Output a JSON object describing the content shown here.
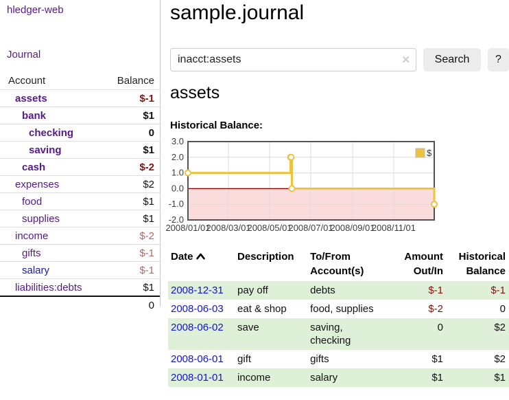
{
  "sidebar": {
    "brand": "hledger-web",
    "nav": [
      {
        "label": "Journal"
      }
    ],
    "accounts_table": {
      "columns": [
        "Account",
        "Balance"
      ],
      "rows": [
        {
          "name": "assets",
          "depth": 1,
          "bold": true,
          "balance": "$-1",
          "neg": "strong"
        },
        {
          "name": "bank",
          "depth": 2,
          "bold": true,
          "balance": "$1"
        },
        {
          "name": "checking",
          "depth": 3,
          "bold": true,
          "balance": "0"
        },
        {
          "name": "saving",
          "depth": 3,
          "bold": true,
          "balance": "$1"
        },
        {
          "name": "cash",
          "depth": 2,
          "bold": true,
          "balance": "$-2",
          "neg": "strong"
        },
        {
          "name": "expenses",
          "depth": 1,
          "bold": false,
          "balance": "$2"
        },
        {
          "name": "food",
          "depth": 2,
          "bold": false,
          "balance": "$1"
        },
        {
          "name": "supplies",
          "depth": 2,
          "bold": false,
          "balance": "$1"
        },
        {
          "name": "income",
          "depth": 1,
          "bold": false,
          "balance": "$-2",
          "neg": "muted"
        },
        {
          "name": "gifts",
          "depth": 2,
          "bold": false,
          "balance": "$-1",
          "neg": "muted"
        },
        {
          "name": "salary",
          "depth": 2,
          "bold": false,
          "balance": "$-1",
          "neg": "muted",
          "link": "blue"
        },
        {
          "name": "liabilities:debts",
          "depth": 1,
          "bold": false,
          "balance": "$1"
        }
      ],
      "total": "0"
    }
  },
  "header": {
    "title": "sample.journal"
  },
  "search": {
    "value": "inacct:assets",
    "clear_icon": "✕",
    "search_label": "Search",
    "help_label": "?"
  },
  "account_page": {
    "title": "assets",
    "chart_label": "Historical Balance:"
  },
  "chart_data": {
    "type": "line",
    "title": "Historical Balance:",
    "step": true,
    "series": [
      {
        "name": "$",
        "points": [
          {
            "date": "2008-01-01",
            "value": 1
          },
          {
            "date": "2008-06-01",
            "value": 2
          },
          {
            "date": "2008-06-02",
            "value": 2
          },
          {
            "date": "2008-06-03",
            "value": 0
          },
          {
            "date": "2008-12-31",
            "value": -1
          }
        ]
      }
    ],
    "x_range": [
      "2008-01-01",
      "2008-12-31"
    ],
    "ylim": [
      -2,
      3
    ],
    "y_ticks": [
      3.0,
      2.0,
      1.0,
      0.0,
      -1.0,
      -2.0
    ],
    "x_ticks": [
      "2008/01/01",
      "2008/03/01",
      "2008/05/01",
      "2008/07/01",
      "2008/09/01",
      "2008/11/01"
    ],
    "legend_position": "top-right",
    "grid": true,
    "negative_region_color": "#fbdcdc",
    "zero_line_color": "#8b0000"
  },
  "register": {
    "columns": [
      {
        "label": "Date",
        "align": "left",
        "sorted": "ascending"
      },
      {
        "label": "Description",
        "align": "left"
      },
      {
        "label": "To/From\nAccount(s)",
        "align": "left"
      },
      {
        "label": "Amount\nOut/In",
        "align": "right"
      },
      {
        "label": "Historical\nBalance",
        "align": "right"
      }
    ],
    "rows": [
      {
        "date": "2008-12-31",
        "description": "pay off",
        "accounts": "debts",
        "amount": "$-1",
        "balance": "$-1"
      },
      {
        "date": "2008-06-03",
        "description": "eat & shop",
        "accounts": "food, supplies",
        "amount": "$-2",
        "balance": "0"
      },
      {
        "date": "2008-06-02",
        "description": "save",
        "accounts": "saving,\nchecking",
        "amount": "0",
        "balance": "$2"
      },
      {
        "date": "2008-06-01",
        "description": "gift",
        "accounts": "gifts",
        "amount": "$1",
        "balance": "$2"
      },
      {
        "date": "2008-01-01",
        "description": "income",
        "accounts": "salary",
        "amount": "$1",
        "balance": "$1"
      }
    ]
  },
  "colors": {
    "accent_purple": "#551a8b",
    "link_blue": "#1414cc",
    "negative_strong": "#8b0f0f",
    "negative_muted": "#b36a6a",
    "row_stripe_green": "#dff0d8",
    "chart_line": "#edc240",
    "chart_negative_bg": "#fbdcdc",
    "chart_zero_line": "#8b0000",
    "button_bg": "#ececec"
  }
}
